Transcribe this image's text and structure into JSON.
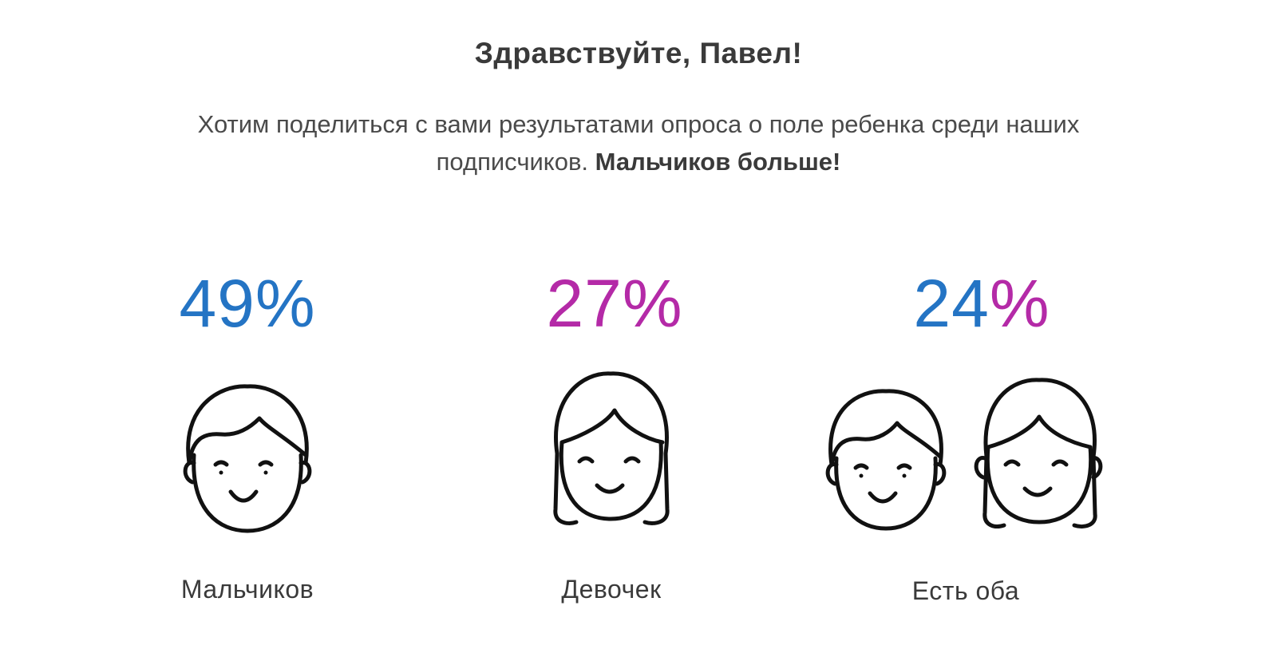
{
  "greeting": "Здравствуйте, Павел!",
  "intro": {
    "text": "Хотим поделиться с вами результатами опроса о поле ребенка среди наших подписчиков.",
    "emphasis": "Мальчиков больше!"
  },
  "colors": {
    "blue": "#2474c4",
    "magenta": "#b42aa7",
    "icon_stroke": "#111111"
  },
  "stats": [
    {
      "percent": "49%",
      "label": "Мальчиков",
      "icon": "boy-face-icon"
    },
    {
      "percent": "27%",
      "label": "Девочек",
      "icon": "girl-face-icon"
    },
    {
      "percent_a": "24",
      "percent_b": "%",
      "label": "Есть оба",
      "icon": "boy-and-girl-faces-icon"
    }
  ]
}
